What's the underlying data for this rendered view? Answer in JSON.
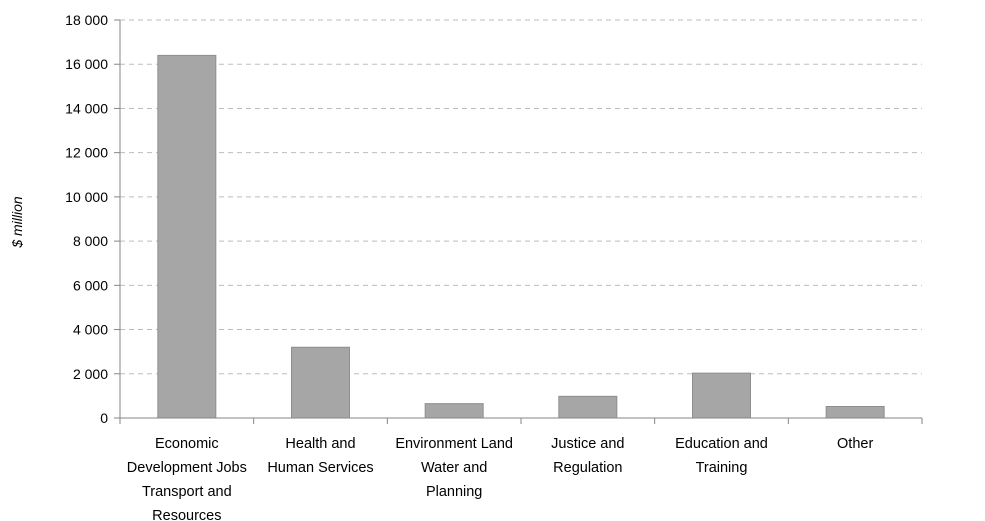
{
  "chart_data": {
    "type": "bar",
    "categories": [
      [
        "Economic",
        "Development Jobs",
        "Transport and",
        "Resources"
      ],
      [
        "Health and",
        "Human Services"
      ],
      [
        "Environment Land",
        "Water and",
        "Planning"
      ],
      [
        "Justice and",
        "Regulation"
      ],
      [
        "Education and",
        "Training"
      ],
      [
        "Other"
      ]
    ],
    "values": [
      16400,
      3200,
      650,
      980,
      2030,
      520
    ],
    "ylabel": "$ million",
    "ylim": [
      0,
      18000
    ],
    "yticks": [
      0,
      2000,
      4000,
      6000,
      8000,
      10000,
      12000,
      14000,
      16000,
      18000
    ],
    "ytick_labels": [
      "0",
      "2 000",
      "4 000",
      "6 000",
      "8 000",
      "10 000",
      "12 000",
      "14 000",
      "16 000",
      "18 000"
    ],
    "grid": true,
    "colors": {
      "bar": "#a6a6a6",
      "bar_edge": "#8f8f8f",
      "grid": "#bdbdbd",
      "axis": "#868686"
    }
  }
}
